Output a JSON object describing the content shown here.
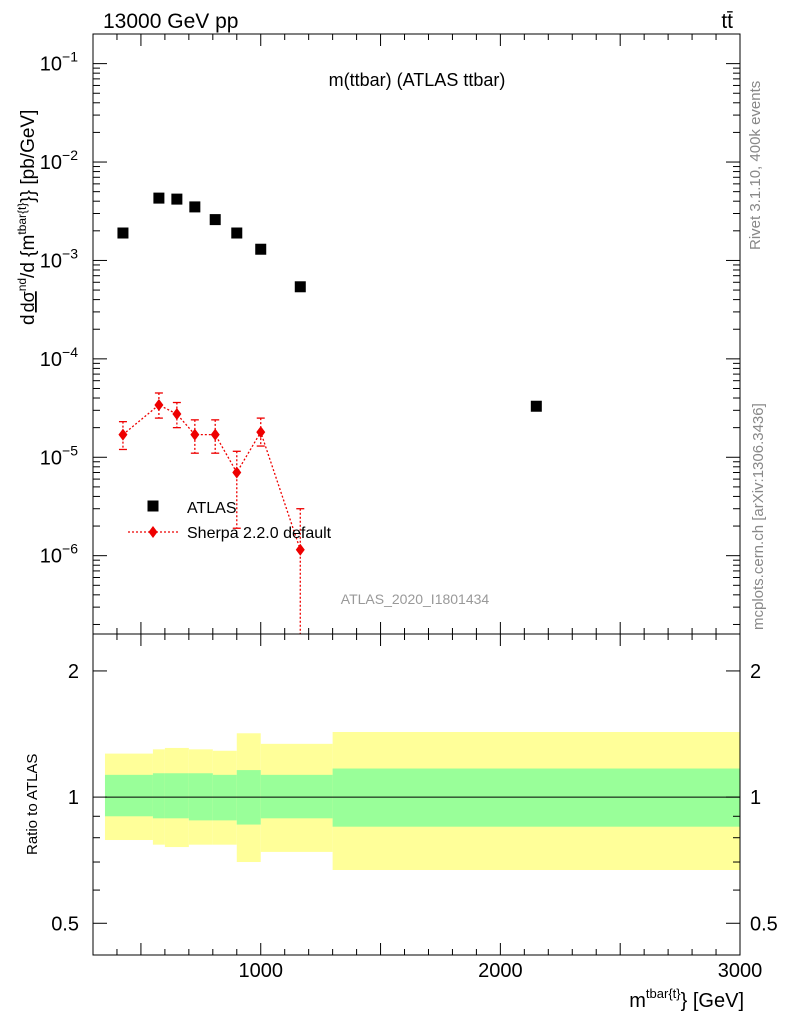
{
  "header": {
    "energy_label": "13000 GeV pp",
    "process_label": "tt̄"
  },
  "side_labels": {
    "rivet": "Rivet 3.1.10,  400k events",
    "mcplots": "mcplots.cern.ch [arXiv:1306.3436]"
  },
  "watermark": "ATLAS_2020_I1801434",
  "chart_data": [
    {
      "type": "scatter",
      "title": "m(ttbar) (ATLAS ttbar)",
      "xlabel": "m^{tbar{t}} [GeV]",
      "ylabel": "d dσ^{nd} / d {m^{tbar{t}}} [pb/GeV]",
      "yscale": "log",
      "xlim": [
        300,
        3000
      ],
      "ylim": [
        1.6e-07,
        0.2
      ],
      "y_tick_labels": [
        "10^{-6}",
        "10^{-5}",
        "10^{-4}",
        "10^{-3}",
        "10^{-2}",
        "10^{-1}"
      ],
      "legend_placement": "bottom-left",
      "series": [
        {
          "name": "ATLAS",
          "color": "#000000",
          "marker": "square",
          "x": [
            425,
            575,
            650,
            725,
            810,
            900,
            1000,
            1165,
            2150
          ],
          "y": [
            0.0019,
            0.0043,
            0.0042,
            0.0035,
            0.0026,
            0.0019,
            0.0013,
            0.00054,
            3.3e-05
          ]
        },
        {
          "name": "Sherpa 2.2.0 default",
          "color": "#ee0000",
          "marker": "diamond",
          "line": "dotted",
          "x": [
            425,
            575,
            650,
            725,
            810,
            900,
            1000,
            1165
          ],
          "y": [
            1.7e-05,
            3.4e-05,
            2.75e-05,
            1.7e-05,
            1.7e-05,
            7e-06,
            1.8e-05,
            1.15e-06
          ],
          "y_low": [
            1.2e-05,
            2.5e-05,
            2e-05,
            1.1e-05,
            1.1e-05,
            1.9e-06,
            1.3e-05,
            1e-08
          ],
          "y_high": [
            2.3e-05,
            4.5e-05,
            3.6e-05,
            2.4e-05,
            2.4e-05,
            1.15e-05,
            2.5e-05,
            3e-06
          ]
        }
      ]
    },
    {
      "type": "area",
      "ylabel": "Ratio to ATLAS",
      "xlabel": "m^{tbar{t}} [GeV]",
      "yscale": "log",
      "xlim": [
        300,
        3000
      ],
      "ylim": [
        0.42,
        2.45
      ],
      "y_tick_labels": [
        "0.5",
        "1",
        "2"
      ],
      "x_tick_labels": [
        "1000",
        "2000",
        "3000"
      ],
      "reference_line": 1,
      "bins": [
        {
          "x0": 350,
          "x1": 550,
          "stat_lo": 0.9,
          "stat_hi": 1.13,
          "tot_lo": 0.79,
          "tot_hi": 1.27
        },
        {
          "x0": 550,
          "x1": 600,
          "stat_lo": 0.89,
          "stat_hi": 1.14,
          "tot_lo": 0.77,
          "tot_hi": 1.3
        },
        {
          "x0": 600,
          "x1": 700,
          "stat_lo": 0.89,
          "stat_hi": 1.14,
          "tot_lo": 0.76,
          "tot_hi": 1.31
        },
        {
          "x0": 700,
          "x1": 800,
          "stat_lo": 0.88,
          "stat_hi": 1.14,
          "tot_lo": 0.77,
          "tot_hi": 1.3
        },
        {
          "x0": 800,
          "x1": 900,
          "stat_lo": 0.88,
          "stat_hi": 1.13,
          "tot_lo": 0.77,
          "tot_hi": 1.29
        },
        {
          "x0": 900,
          "x1": 1000,
          "stat_lo": 0.86,
          "stat_hi": 1.16,
          "tot_lo": 0.7,
          "tot_hi": 1.42
        },
        {
          "x0": 1000,
          "x1": 1300,
          "stat_lo": 0.89,
          "stat_hi": 1.13,
          "tot_lo": 0.74,
          "tot_hi": 1.34
        },
        {
          "x0": 1300,
          "x1": 3000,
          "stat_lo": 0.85,
          "stat_hi": 1.17,
          "tot_lo": 0.67,
          "tot_hi": 1.43
        }
      ],
      "band_colors": {
        "stat": "#99ff99",
        "total": "#ffff99"
      }
    }
  ]
}
